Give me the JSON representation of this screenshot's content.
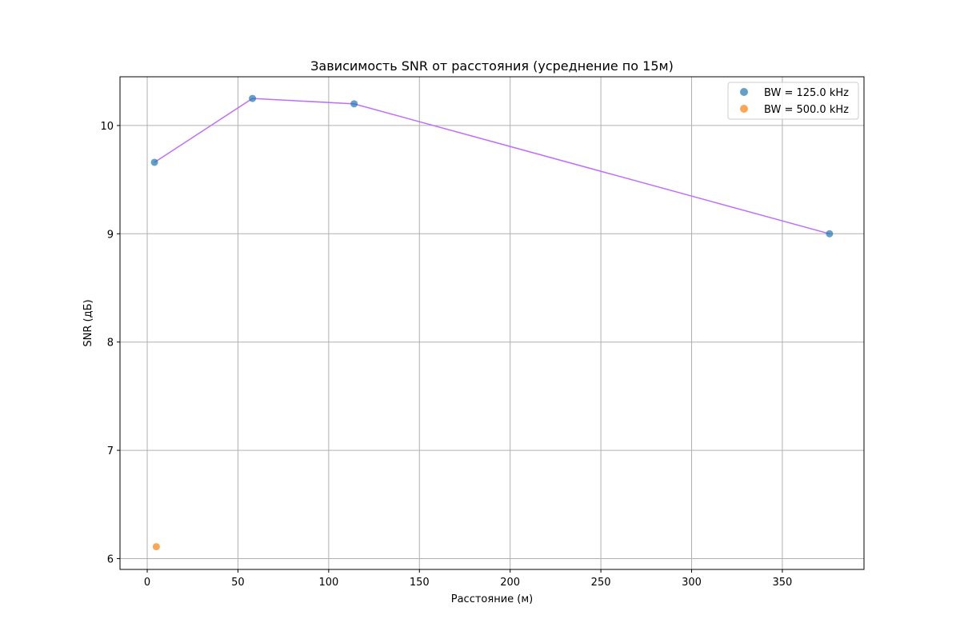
{
  "chart_data": {
    "type": "scatter",
    "title": "Зависимость SNR от расстояния (усреднение по 15м)",
    "xlabel": "Расстояние (м)",
    "ylabel": "SNR (дБ)",
    "xlim": [
      -15,
      395
    ],
    "ylim": [
      5.9,
      10.45
    ],
    "xticks": [
      0,
      50,
      100,
      150,
      200,
      250,
      300,
      350
    ],
    "yticks": [
      6,
      7,
      8,
      9,
      10
    ],
    "grid": true,
    "legend_position": "top-right",
    "series": [
      {
        "name": "BW = 125.0 kHz",
        "color": "#1f77b4",
        "points": [
          {
            "x": 4,
            "y": 9.66
          },
          {
            "x": 58,
            "y": 10.25
          },
          {
            "x": 114,
            "y": 10.2
          },
          {
            "x": 376,
            "y": 9.0
          }
        ]
      },
      {
        "name": "BW = 500.0 kHz",
        "color": "#ff7f0e",
        "points": [
          {
            "x": 5,
            "y": 6.11
          }
        ]
      }
    ],
    "trend_line": {
      "color": "#bf6dff",
      "points": [
        {
          "x": 4,
          "y": 9.66
        },
        {
          "x": 58,
          "y": 10.25
        },
        {
          "x": 114,
          "y": 10.2
        },
        {
          "x": 376,
          "y": 9.0
        }
      ]
    }
  }
}
